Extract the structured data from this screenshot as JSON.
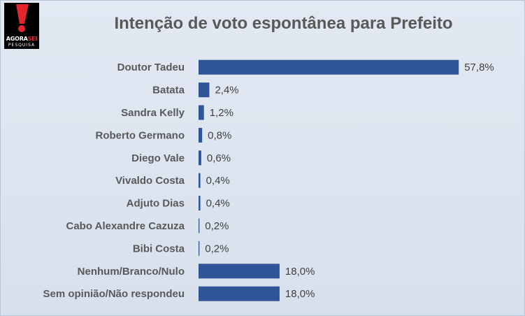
{
  "logo": {
    "brand_a": "AGORA",
    "brand_b": "SEI",
    "sub": "PESQUISA"
  },
  "colors": {
    "bar": "#2f5597",
    "text": "#595959",
    "logo_red": "#e3262b"
  },
  "chart_data": {
    "type": "bar",
    "orientation": "horizontal",
    "title": "Intenção de voto espontânea para Prefeito",
    "categories": [
      "Doutor Tadeu",
      "Batata",
      "Sandra Kelly",
      "Roberto Germano",
      "Diego Vale",
      "Vivaldo Costa",
      "Adjuto Dias",
      "Cabo Alexandre Cazuza",
      "Bibi Costa",
      "Nenhum/Branco/Nulo",
      "Sem opinião/Não respondeu"
    ],
    "values": [
      57.8,
      2.4,
      1.2,
      0.8,
      0.6,
      0.4,
      0.4,
      0.2,
      0.2,
      18.0,
      18.0
    ],
    "value_labels": [
      "57,8%",
      "2,4%",
      "1,2%",
      "0,8%",
      "0,6%",
      "0,4%",
      "0,4%",
      "0,2%",
      "0,2%",
      "18,0%",
      "18,0%"
    ],
    "xlim": [
      0,
      60
    ],
    "grid": false,
    "legend": "none"
  }
}
